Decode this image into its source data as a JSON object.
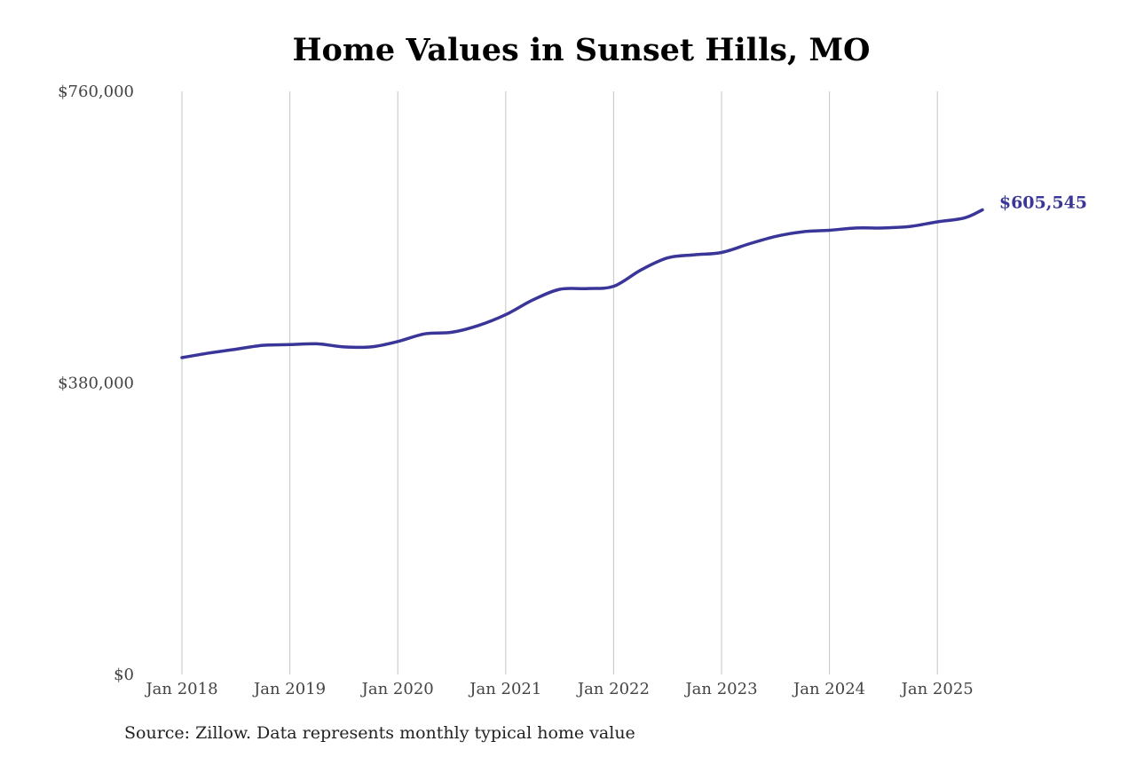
{
  "chart_data": {
    "type": "line",
    "title": "Home Values in Sunset Hills, MO",
    "source": "Source: Zillow. Data represents monthly typical home value",
    "xlabel": "",
    "ylabel": "",
    "x_range": [
      "2018-01",
      "2025-06"
    ],
    "x_ticks": [
      "Jan 2018",
      "Jan 2019",
      "Jan 2020",
      "Jan 2021",
      "Jan 2022",
      "Jan 2023",
      "Jan 2024",
      "Jan 2025"
    ],
    "ylim": [
      0,
      760000
    ],
    "y_ticks": [
      {
        "value": 0,
        "label": "$0"
      },
      {
        "value": 380000,
        "label": "$380,000"
      },
      {
        "value": 760000,
        "label": "$760,000"
      }
    ],
    "grid": "vertical",
    "line_color": "#3a3598",
    "end_label": "$605,545",
    "series": [
      {
        "x": [
          "2018-01",
          "2018-04",
          "2018-07",
          "2018-10",
          "2019-01",
          "2019-04",
          "2019-07",
          "2019-10",
          "2020-01",
          "2020-04",
          "2020-07",
          "2020-10",
          "2021-01",
          "2021-04",
          "2021-07",
          "2021-10",
          "2022-01",
          "2022-04",
          "2022-07",
          "2022-10",
          "2023-01",
          "2023-04",
          "2023-07",
          "2023-10",
          "2024-01",
          "2024-04",
          "2024-07",
          "2024-10",
          "2025-01",
          "2025-04",
          "2025-06"
        ],
        "values": [
          413000,
          419000,
          424000,
          429000,
          430000,
          431000,
          427000,
          427000,
          434000,
          444000,
          446000,
          455000,
          469000,
          488000,
          502000,
          503000,
          506000,
          527000,
          543000,
          547000,
          550000,
          561000,
          571000,
          577000,
          579000,
          582000,
          582000,
          584000,
          590000,
          595000,
          605545
        ]
      }
    ]
  }
}
